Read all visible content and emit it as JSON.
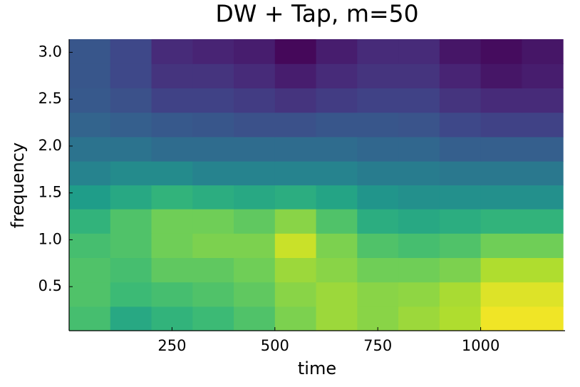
{
  "chart_data": {
    "type": "heatmap",
    "title": "DW + Tap, m=50",
    "x_label": "time",
    "y_label": "frequency",
    "colormap": "viridis",
    "zlim": [
      0,
      1
    ],
    "x": [
      50,
      150,
      250,
      350,
      450,
      550,
      650,
      750,
      850,
      950,
      1050,
      1150
    ],
    "y": [
      0.16,
      0.42,
      0.68,
      0.94,
      1.2,
      1.46,
      1.71,
      1.97,
      2.23,
      2.49,
      2.75,
      3.01
    ],
    "z": [
      [
        0.7,
        0.6,
        0.65,
        0.68,
        0.72,
        0.8,
        0.85,
        0.82,
        0.85,
        0.88,
        0.98,
        0.98
      ],
      [
        0.72,
        0.68,
        0.7,
        0.72,
        0.75,
        0.82,
        0.85,
        0.82,
        0.83,
        0.87,
        0.95,
        0.95
      ],
      [
        0.72,
        0.7,
        0.75,
        0.75,
        0.78,
        0.85,
        0.82,
        0.78,
        0.78,
        0.8,
        0.88,
        0.88
      ],
      [
        0.7,
        0.72,
        0.78,
        0.8,
        0.8,
        0.92,
        0.8,
        0.72,
        0.7,
        0.72,
        0.78,
        0.78
      ],
      [
        0.65,
        0.72,
        0.78,
        0.78,
        0.75,
        0.82,
        0.72,
        0.62,
        0.6,
        0.62,
        0.65,
        0.65
      ],
      [
        0.55,
        0.6,
        0.65,
        0.62,
        0.6,
        0.62,
        0.58,
        0.52,
        0.5,
        0.5,
        0.5,
        0.5
      ],
      [
        0.45,
        0.48,
        0.48,
        0.45,
        0.45,
        0.45,
        0.45,
        0.42,
        0.42,
        0.4,
        0.4,
        0.4
      ],
      [
        0.38,
        0.38,
        0.35,
        0.35,
        0.35,
        0.35,
        0.35,
        0.33,
        0.33,
        0.3,
        0.3,
        0.3
      ],
      [
        0.32,
        0.3,
        0.28,
        0.27,
        0.25,
        0.25,
        0.27,
        0.27,
        0.26,
        0.22,
        0.2,
        0.2
      ],
      [
        0.28,
        0.25,
        0.2,
        0.2,
        0.18,
        0.15,
        0.18,
        0.2,
        0.2,
        0.15,
        0.12,
        0.12
      ],
      [
        0.27,
        0.22,
        0.15,
        0.15,
        0.12,
        0.08,
        0.12,
        0.15,
        0.15,
        0.1,
        0.06,
        0.08
      ],
      [
        0.27,
        0.22,
        0.12,
        0.1,
        0.08,
        0.02,
        0.08,
        0.12,
        0.12,
        0.06,
        0.03,
        0.06
      ]
    ],
    "xlim": [
      0,
      1205
    ],
    "xticks": [
      250,
      500,
      750,
      1000
    ],
    "ylim": [
      0.03,
      3.14
    ],
    "yticks": [
      0.5,
      {
        "value": 1.0,
        "label": "1.0"
      },
      1.5,
      {
        "value": 2.0,
        "label": "2.0"
      },
      2.5,
      {
        "value": 3.0,
        "label": "3.0"
      }
    ]
  }
}
